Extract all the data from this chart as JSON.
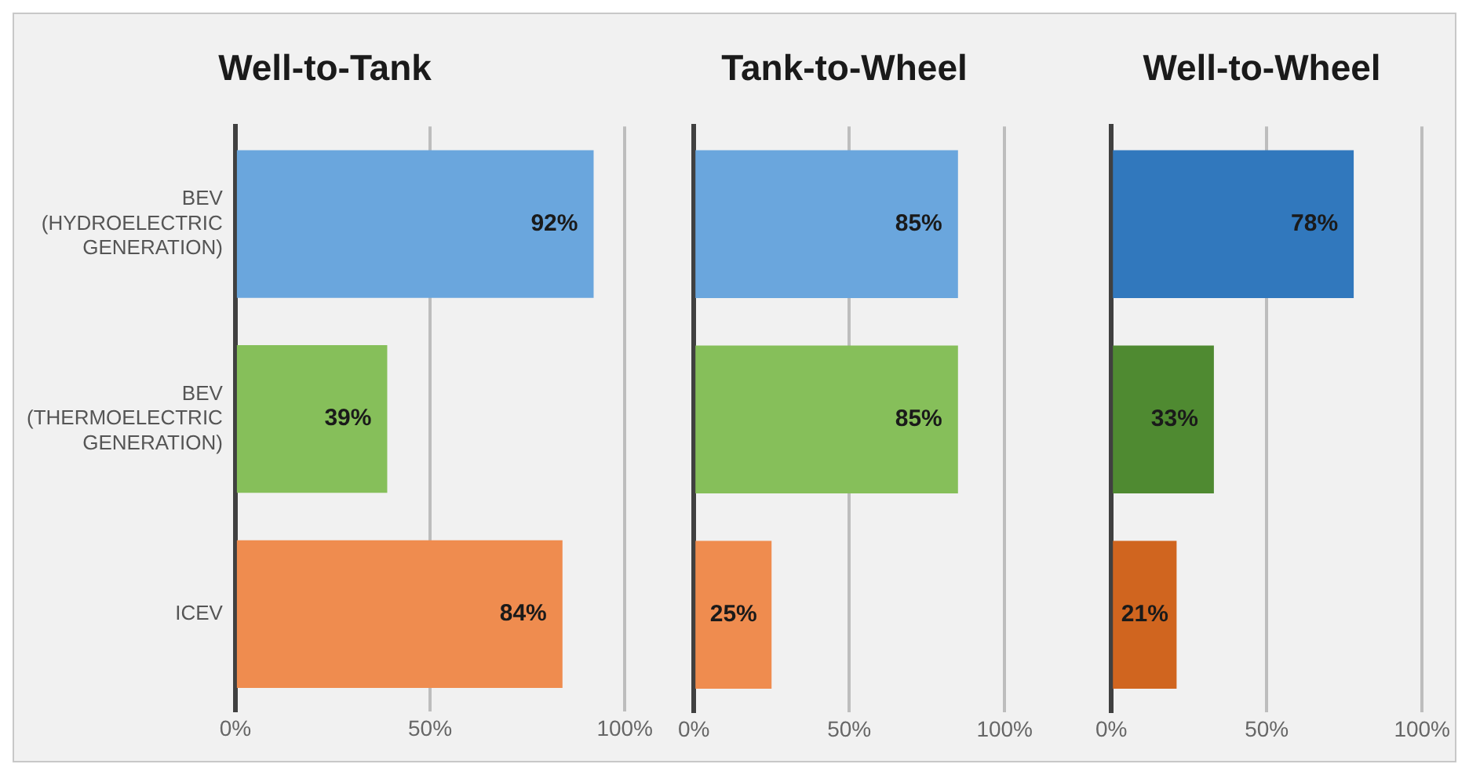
{
  "chart_data": [
    {
      "type": "bar",
      "orientation": "horizontal",
      "title": "Well-to-Tank",
      "categories": [
        "BEV (HYDROELECTRIC GENERATION)",
        "BEV (THERMOELECTRIC GENERATION)",
        "ICEV"
      ],
      "values": [
        92,
        39,
        84
      ],
      "colors": [
        "#6aa6dd",
        "#86bf5a",
        "#ef8c4f"
      ],
      "value_labels": [
        "92%",
        "39%",
        "84%"
      ],
      "xlim": [
        0,
        100
      ],
      "xticks": [
        {
          "value": 0,
          "label": "0%"
        },
        {
          "value": 50,
          "label": "50%"
        },
        {
          "value": 100,
          "label": "100%"
        }
      ],
      "grid": "x",
      "legend": false
    },
    {
      "type": "bar",
      "orientation": "horizontal",
      "title": "Tank-to-Wheel",
      "categories": [
        null,
        null,
        null
      ],
      "values": [
        85,
        85,
        25
      ],
      "colors": [
        "#6aa6dd",
        "#86bf5a",
        "#ef8c4f"
      ],
      "value_labels": [
        "85%",
        "85%",
        "25%"
      ],
      "xlim": [
        0,
        100
      ],
      "xticks": [
        {
          "value": 0,
          "label": "0%"
        },
        {
          "value": 50,
          "label": "50%"
        },
        {
          "value": 100,
          "label": "100%"
        }
      ],
      "grid": "x",
      "legend": false,
      "tick_labels": "x"
    },
    {
      "type": "bar",
      "orientation": "horizontal",
      "title": "Well-to-Wheel",
      "categories": [
        null,
        null,
        null
      ],
      "values": [
        78,
        33,
        21
      ],
      "colors": [
        "#3178bd",
        "#4f8a31",
        "#d0651f"
      ],
      "value_labels": [
        "78%",
        "33%",
        "21%"
      ],
      "xlim": [
        0,
        100
      ],
      "xticks": [
        {
          "value": 0,
          "label": "0%"
        },
        {
          "value": 50,
          "label": "50%"
        },
        {
          "value": 100,
          "label": "100%"
        }
      ],
      "grid": "x",
      "legend": false,
      "tick_labels": "x"
    }
  ]
}
